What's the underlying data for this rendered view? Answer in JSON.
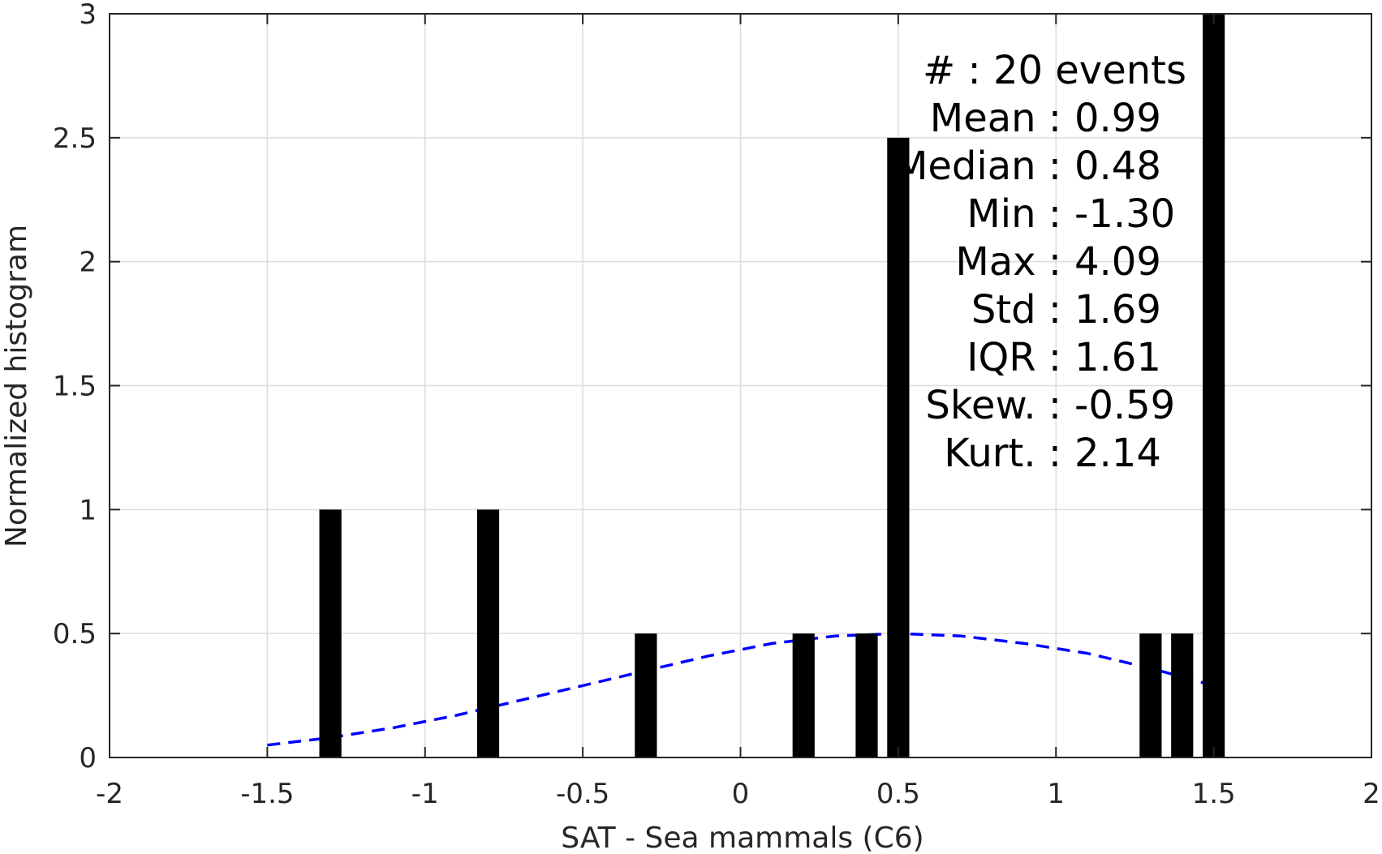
{
  "chart_data": {
    "type": "bar",
    "xlabel": "SAT - Sea mammals (C6)",
    "ylabel": "Normalized histogram",
    "xlim": [
      -2,
      2
    ],
    "ylim": [
      0,
      3
    ],
    "xticks": [
      -2,
      -1.5,
      -1,
      -0.5,
      0,
      0.5,
      1,
      1.5,
      2
    ],
    "xtick_labels": [
      "-2",
      "-1.5",
      "-1",
      "-0.5",
      "0",
      "0.5",
      "1",
      "1.5",
      "2"
    ],
    "yticks": [
      0,
      0.5,
      1,
      1.5,
      2,
      2.5,
      3
    ],
    "ytick_labels": [
      "0",
      "0.5",
      "1",
      "1.5",
      "2",
      "2.5",
      "3"
    ],
    "grid": true,
    "bar_color": "#000000",
    "bin_width": 0.07,
    "bars": [
      {
        "x": -1.3,
        "value": 1.0
      },
      {
        "x": -0.8,
        "value": 1.0
      },
      {
        "x": -0.3,
        "value": 0.5
      },
      {
        "x": 0.2,
        "value": 0.5
      },
      {
        "x": 0.4,
        "value": 0.5
      },
      {
        "x": 0.5,
        "value": 2.5
      },
      {
        "x": 1.3,
        "value": 0.5
      },
      {
        "x": 1.4,
        "value": 0.5
      },
      {
        "x": 1.5,
        "value": 3.0
      }
    ],
    "fit_curve": {
      "style": "dashed",
      "color": "#0000ff",
      "x": [
        -1.5,
        -1.3,
        -1.1,
        -0.9,
        -0.7,
        -0.5,
        -0.3,
        -0.1,
        0.1,
        0.3,
        0.5,
        0.7,
        0.9,
        1.1,
        1.3,
        1.5
      ],
      "y": [
        0.05,
        0.08,
        0.12,
        0.17,
        0.23,
        0.29,
        0.35,
        0.41,
        0.46,
        0.49,
        0.5,
        0.49,
        0.46,
        0.42,
        0.36,
        0.29
      ]
    },
    "stats": [
      {
        "label": "#  : 20 events",
        "value": ""
      },
      {
        "label": "Mean : ",
        "value": "0.99"
      },
      {
        "label": "Median : ",
        "value": "0.48"
      },
      {
        "label": "Min : ",
        "value": "-1.30"
      },
      {
        "label": "Max : ",
        "value": "4.09"
      },
      {
        "label": "Std : ",
        "value": "1.69"
      },
      {
        "label": "IQR : ",
        "value": "1.61"
      },
      {
        "label": "Skew. : ",
        "value": "-0.59"
      },
      {
        "label": "Kurt. : ",
        "value": "2.14"
      }
    ]
  }
}
